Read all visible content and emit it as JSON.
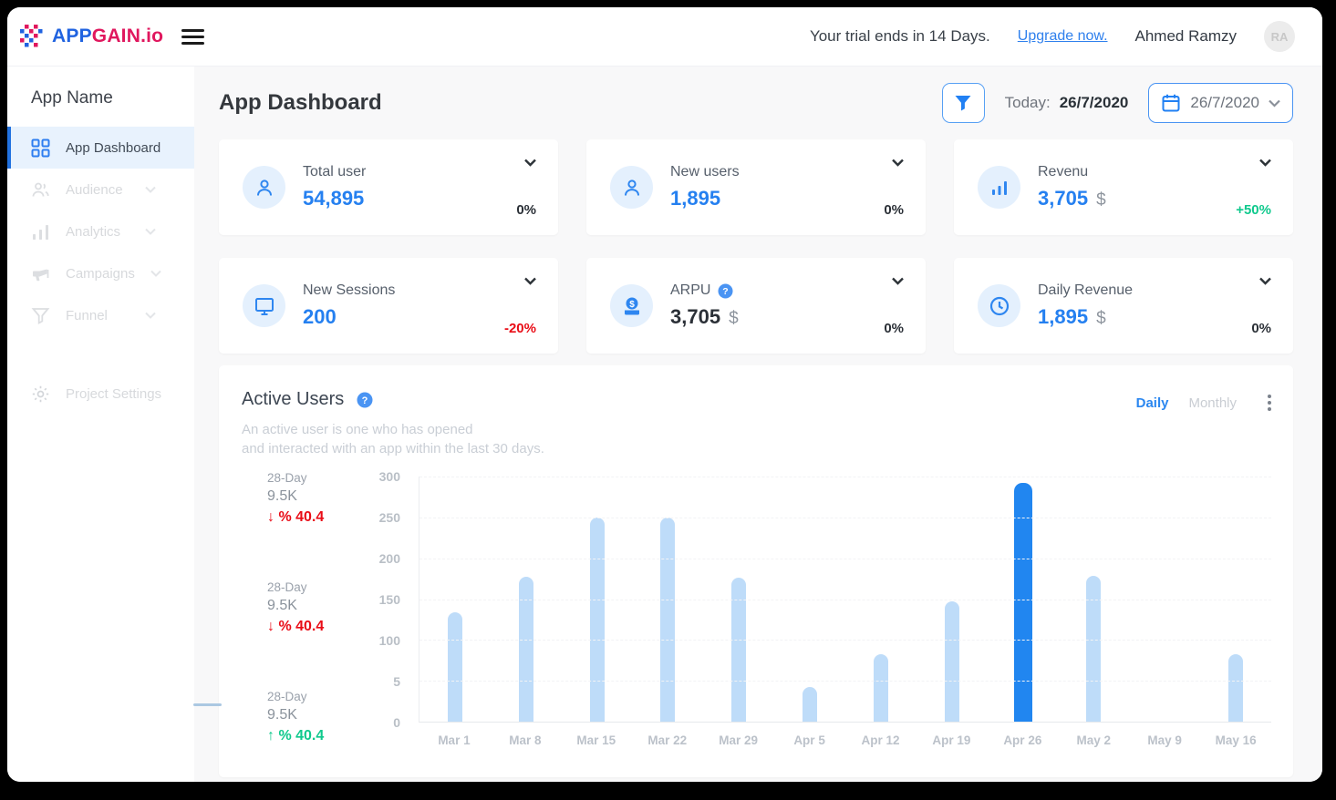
{
  "topbar": {
    "logo_app": "APP",
    "logo_gain": "GAIN.io",
    "trial_text": "Your trial ends in 14 Days.",
    "upgrade_link": "Upgrade now.",
    "user_name": "Ahmed Ramzy",
    "avatar_initials": "RA"
  },
  "sidebar": {
    "app_name": "App Name",
    "items": [
      {
        "label": "App Dashboard",
        "icon": "dashboard-grid-icon",
        "active": true
      },
      {
        "label": "Audience",
        "icon": "audience-icon",
        "active": false
      },
      {
        "label": "Analytics",
        "icon": "analytics-icon",
        "active": false
      },
      {
        "label": "Campaigns",
        "icon": "campaigns-icon",
        "active": false
      },
      {
        "label": "Funnel",
        "icon": "funnel-icon",
        "active": false
      }
    ],
    "settings_label": "Project Settings"
  },
  "header": {
    "title": "App Dashboard",
    "today_label": "Today:",
    "today_value": "26/7/2020",
    "date_picker_value": "26/7/2020"
  },
  "cards": [
    {
      "label": "Total user",
      "value": "54,895",
      "currency": "",
      "value_color": "#2580f0",
      "change": "0%",
      "change_color": "#2b3037",
      "icon": "user-icon"
    },
    {
      "label": "New users",
      "value": "1,895",
      "currency": "",
      "value_color": "#2580f0",
      "change": "0%",
      "change_color": "#2b3037",
      "icon": "user-icon"
    },
    {
      "label": "Revenu",
      "value": "3,705",
      "currency": "$",
      "value_color": "#2580f0",
      "change": "+50%",
      "change_color": "#10c98d",
      "icon": "bar-chart-icon"
    },
    {
      "label": "New Sessions",
      "value": "200",
      "currency": "",
      "value_color": "#2580f0",
      "change": "-20%",
      "change_color": "#e90d17",
      "icon": "monitor-icon"
    },
    {
      "label": "ARPU",
      "value": "3,705",
      "currency": "$",
      "value_color": "#2b3037",
      "change": "0%",
      "change_color": "#2b3037",
      "icon": "dollar-icon",
      "has_help": true
    },
    {
      "label": "Daily Revenue",
      "value": "1,895",
      "currency": "$",
      "value_color": "#2580f0",
      "change": "0%",
      "change_color": "#2b3037",
      "icon": "clock-icon"
    }
  ],
  "active_users": {
    "title": "Active Users",
    "description_line1": "An active user is one who has opened",
    "description_line2": "and interacted with an app within the last 30 days.",
    "toggle_daily": "Daily",
    "toggle_monthly": "Monthly",
    "active_toggle": "Daily",
    "side_stats": [
      {
        "period": "28-Day",
        "value": "9.5K",
        "arrow": "↓",
        "change": "% 40.4",
        "color": "#e90d17"
      },
      {
        "period": "28-Day",
        "value": "9.5K",
        "arrow": "↓",
        "change": "% 40.4",
        "color": "#e90d17"
      },
      {
        "period": "28-Day",
        "value": "9.5K",
        "arrow": "↑",
        "change": "% 40.4",
        "color": "#10c98d"
      }
    ]
  },
  "chart_data": {
    "type": "bar",
    "title": "Active Users",
    "categories": [
      "Mar 1",
      "Mar 8",
      "Mar 15",
      "Mar 22",
      "Mar 29",
      "Apr 5",
      "Apr 12",
      "Apr 19",
      "Apr 26",
      "May 2",
      "May 9",
      "May 16"
    ],
    "values": [
      134,
      177,
      250,
      250,
      176,
      42,
      83,
      147,
      292,
      178,
      0,
      83
    ],
    "highlight_index": 8,
    "yticks": [
      "300",
      "250",
      "200",
      "150",
      "100",
      "5",
      "0"
    ],
    "ylim": [
      0,
      300
    ],
    "bar_color": "#bedcf9",
    "highlight_color": "#2186f0",
    "grid": true,
    "legend": false
  },
  "colors": {
    "accent_blue": "#2580f0",
    "logo_blue": "#2063e0",
    "logo_pink": "#e0175e",
    "green": "#10c98d",
    "red": "#e90d17",
    "icon_circle_bg": "#e4f0fd"
  }
}
